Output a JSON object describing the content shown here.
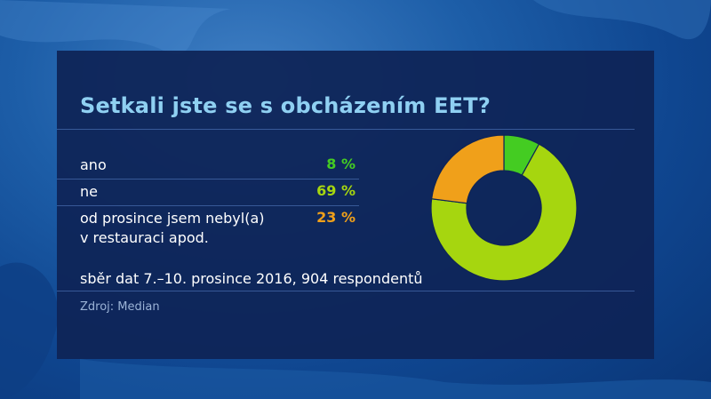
{
  "title": "Setkali jste se s obcházením EET?",
  "rows": [
    {
      "label_line1": "ano",
      "label_line2": "",
      "value": "8 %",
      "color": "#44cc22"
    },
    {
      "label_line1": "ne",
      "label_line2": "",
      "value": "69 %",
      "color": "#a6d60f"
    },
    {
      "label_line1": "od prosince jsem nebyl(a)",
      "label_line2": "v restauraci apod.",
      "value": "23 %",
      "color": "#f0a01a"
    }
  ],
  "note": "sběr dat 7.–10. prosince 2016, 904 respondentů",
  "source": "Zdroj: Median",
  "chart_data": {
    "type": "pie",
    "style": "donut",
    "title": "Setkali jste se s obcházením EET?",
    "categories": [
      "ano",
      "ne",
      "od prosince jsem nebyl(a) v restauraci apod."
    ],
    "values": [
      8,
      69,
      23
    ],
    "unit": "%",
    "colors": [
      "#44cc22",
      "#a6d60f",
      "#f0a01a"
    ],
    "start_angle_deg": 0,
    "direction": "clockwise"
  }
}
